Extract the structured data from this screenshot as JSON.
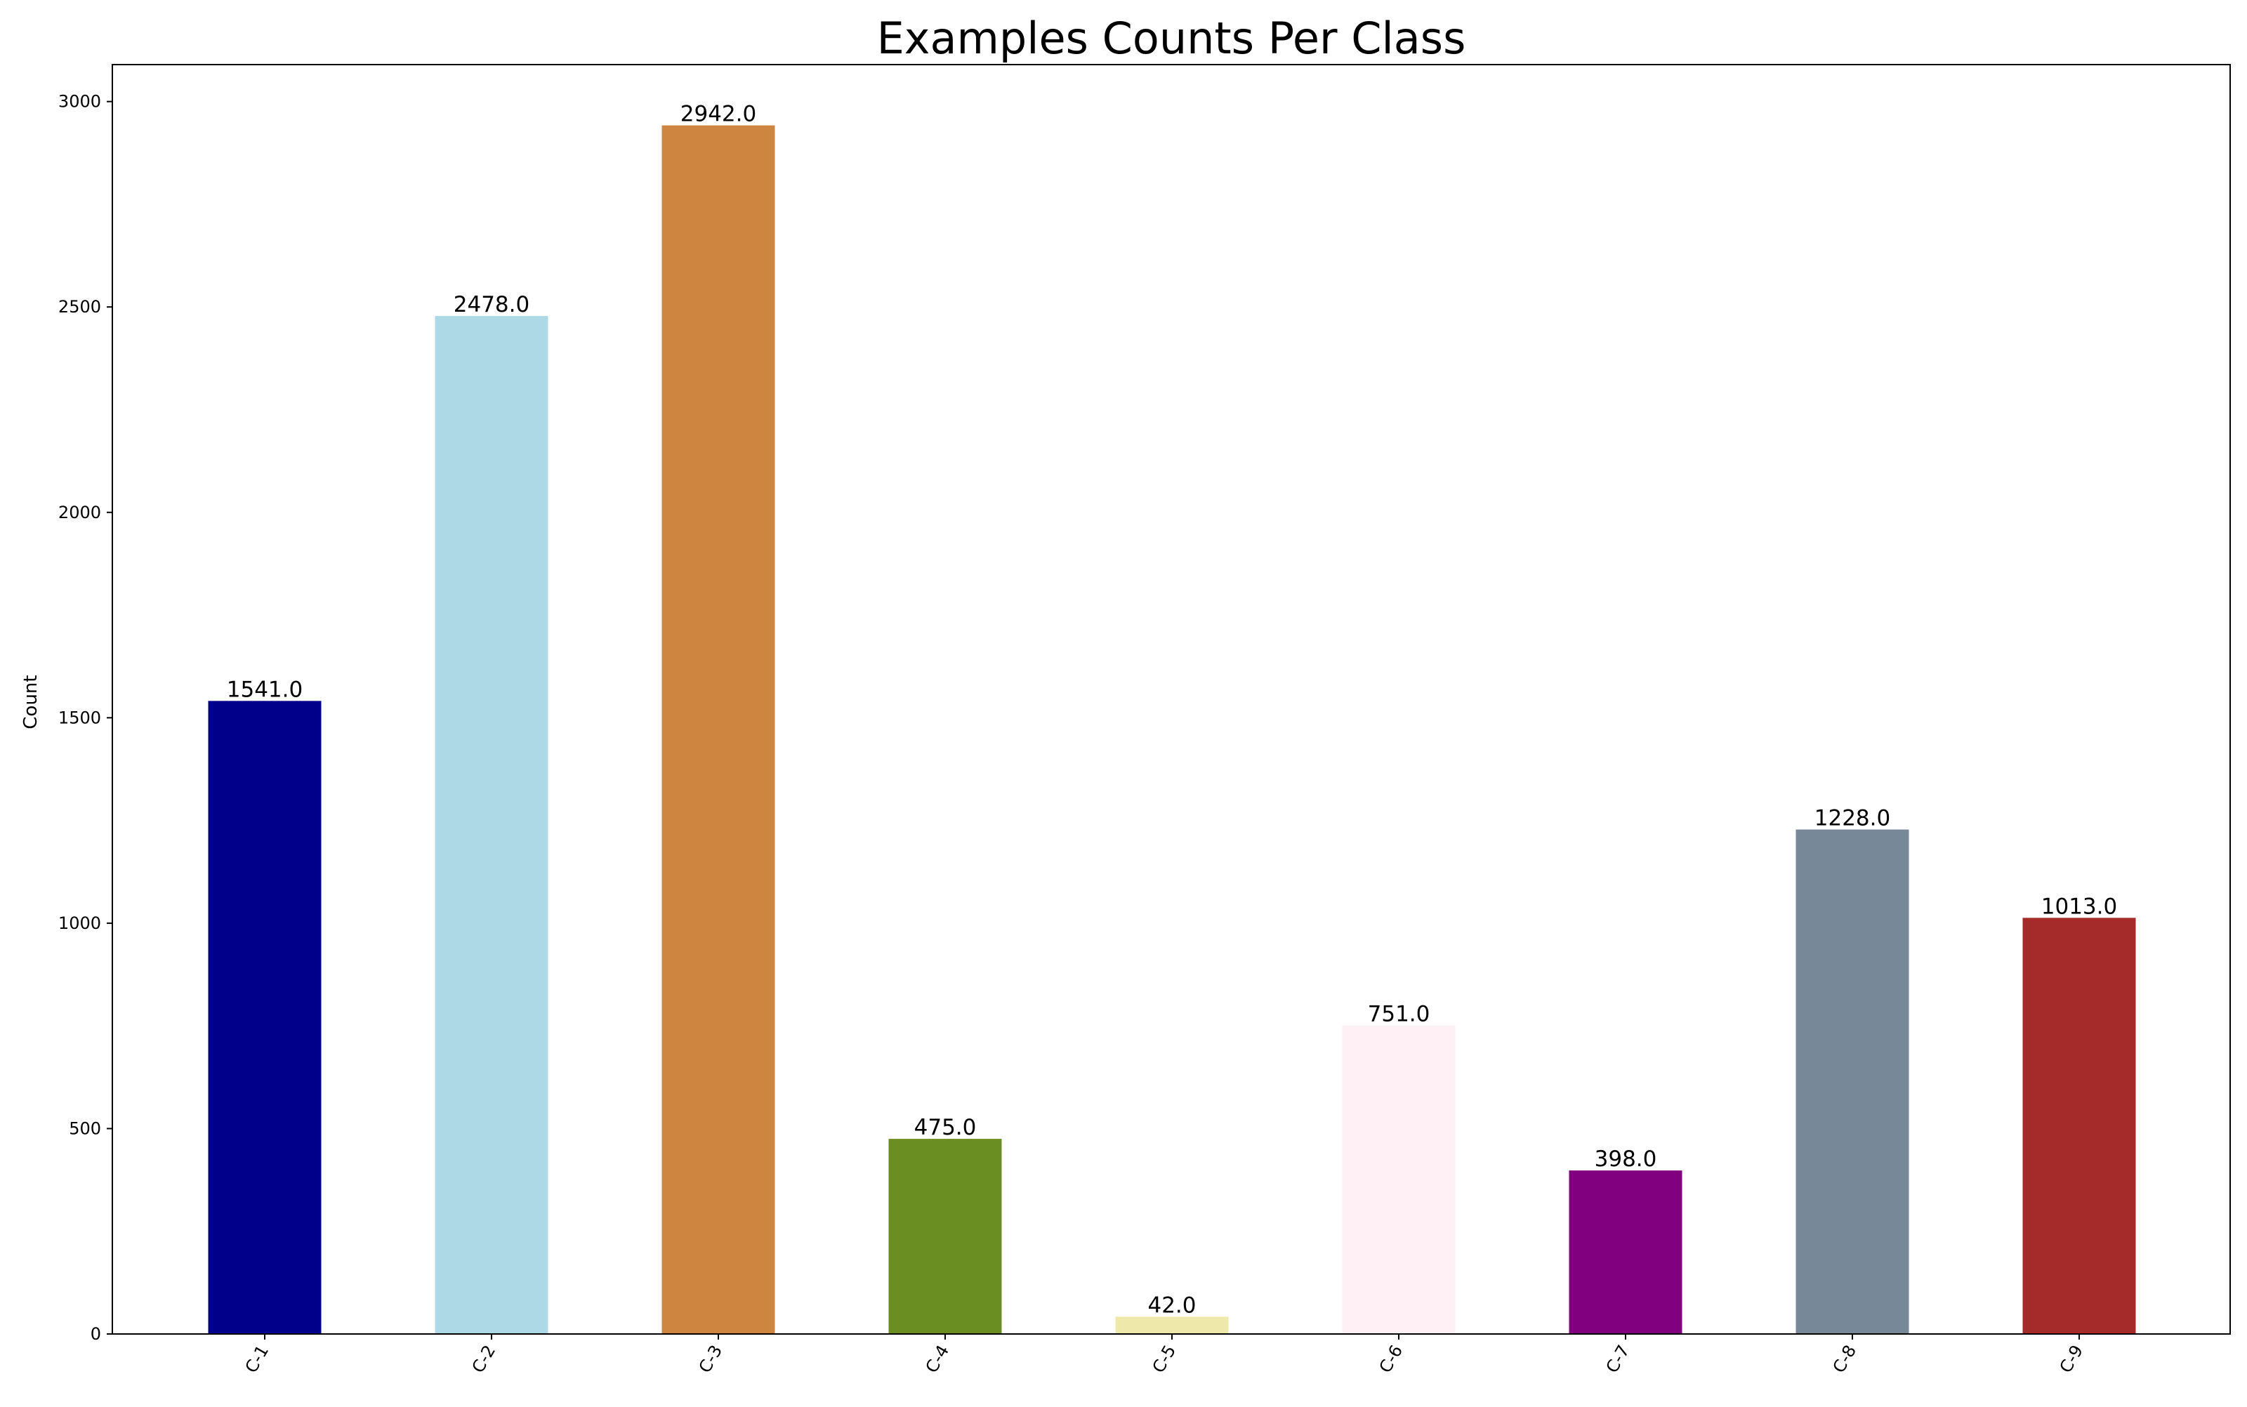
{
  "chart_data": {
    "type": "bar",
    "title": "Examples Counts Per Class",
    "xlabel": "",
    "ylabel": "Count",
    "categories": [
      "C-1",
      "C-2",
      "C-3",
      "C-4",
      "C-5",
      "C-6",
      "C-7",
      "C-8",
      "C-9"
    ],
    "values": [
      1541.0,
      2478.0,
      2942.0,
      475.0,
      42.0,
      751.0,
      398.0,
      1228.0,
      1013.0
    ],
    "value_labels": [
      "1541.0",
      "2478.0",
      "2942.0",
      "475.0",
      "42.0",
      "751.0",
      "398.0",
      "1228.0",
      "1013.0"
    ],
    "colors": [
      "#00008b",
      "#add8e6",
      "#cd853f",
      "#6b8e23",
      "#eee8aa",
      "#fff0f5",
      "#800080",
      "#778899",
      "#a52a2a"
    ],
    "ylim": [
      0,
      3090
    ],
    "yticks": [
      0,
      500,
      1000,
      1500,
      2000,
      2500,
      3000
    ],
    "ytick_labels": [
      "0",
      "500",
      "1000",
      "1500",
      "2000",
      "2500",
      "3000"
    ],
    "grid": false,
    "legend": "none"
  }
}
